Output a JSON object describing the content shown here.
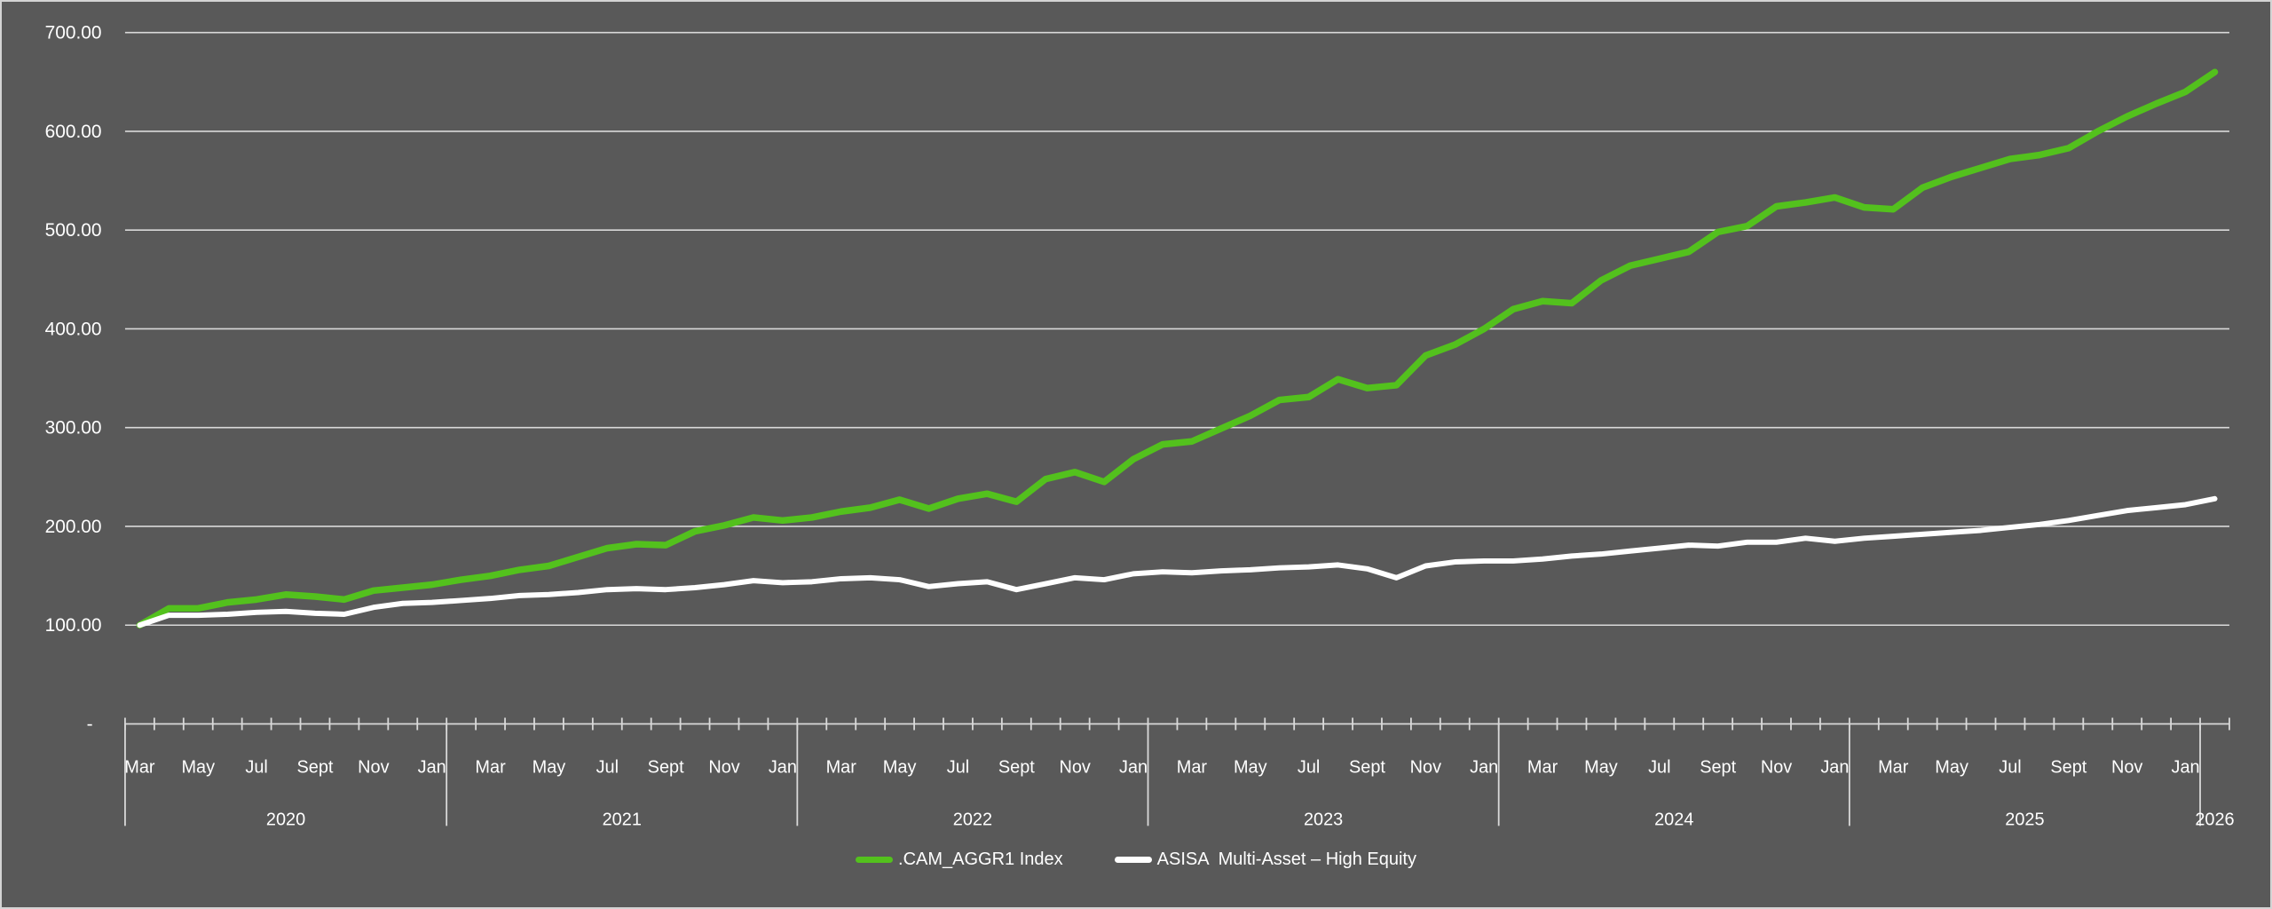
{
  "chart_data": {
    "type": "line",
    "title": "",
    "xlabel": "",
    "ylabel": "",
    "ylim": [
      0,
      700
    ],
    "grid": "horizontal",
    "legend_position": "bottom-center",
    "background_color": "#595959",
    "gridline_color": "#d9d9d9",
    "text_color": "#ffffff",
    "y_axis_labels": [
      "700.00",
      "600.00",
      "500.00",
      "400.00",
      "300.00",
      "200.00",
      "100.00"
    ],
    "y_axis_zero_label": "-",
    "month_tick_labels": [
      "Mar",
      "May",
      "Jul",
      "Sept",
      "Nov",
      "Jan"
    ],
    "year_groups": [
      {
        "label": "2020",
        "months": 11
      },
      {
        "label": "2021",
        "months": 12
      },
      {
        "label": "2022",
        "months": 12
      },
      {
        "label": "2023",
        "months": 12
      },
      {
        "label": "2024",
        "months": 12
      },
      {
        "label": "2025",
        "months": 12
      },
      {
        "label": "2026",
        "months": 1
      }
    ],
    "x_start_month": "Mar 2020",
    "x_end_month": "Feb 2026",
    "series": [
      {
        "name": ".CAM_AGGR1 Index",
        "color": "#53c11d",
        "stroke_width": 7.5,
        "values": [
          100,
          117,
          117,
          123,
          126,
          131,
          129,
          126,
          135,
          138,
          141,
          146,
          150,
          156,
          160,
          169,
          178,
          182,
          181,
          195,
          201,
          209,
          206,
          209,
          215,
          219,
          227,
          218,
          228,
          233,
          225,
          248,
          255,
          245,
          268,
          283,
          286,
          299,
          312,
          328,
          331,
          349,
          340,
          343,
          373,
          384,
          400,
          420,
          428,
          426,
          449,
          464,
          471,
          478,
          498,
          504,
          524,
          528,
          533,
          523,
          521,
          543,
          554,
          563,
          572,
          576,
          583,
          600,
          615,
          628,
          640,
          660
        ]
      },
      {
        "name": "ASISA  Multi-Asset – High Equity",
        "color": "#ffffff",
        "stroke_width": 6,
        "values": [
          100,
          110,
          110,
          111,
          113,
          114,
          112,
          111,
          118,
          122,
          123,
          125,
          127,
          130,
          131,
          133,
          136,
          137,
          136,
          138,
          141,
          145,
          143,
          144,
          147,
          148,
          146,
          139,
          142,
          144,
          136,
          142,
          148,
          146,
          152,
          154,
          153,
          155,
          156,
          158,
          159,
          161,
          157,
          148,
          160,
          164,
          165,
          165,
          167,
          170,
          172,
          175,
          178,
          181,
          180,
          184,
          184,
          188,
          185,
          188,
          190,
          192,
          194,
          196,
          199,
          202,
          206,
          211,
          216,
          219,
          222,
          228
        ]
      }
    ]
  },
  "legend": {
    "items": [
      {
        "label": ".CAM_AGGR1 Index",
        "color": "#53c11d"
      },
      {
        "label": "ASISA  Multi-Asset – High Equity",
        "color": "#ffffff"
      }
    ]
  }
}
